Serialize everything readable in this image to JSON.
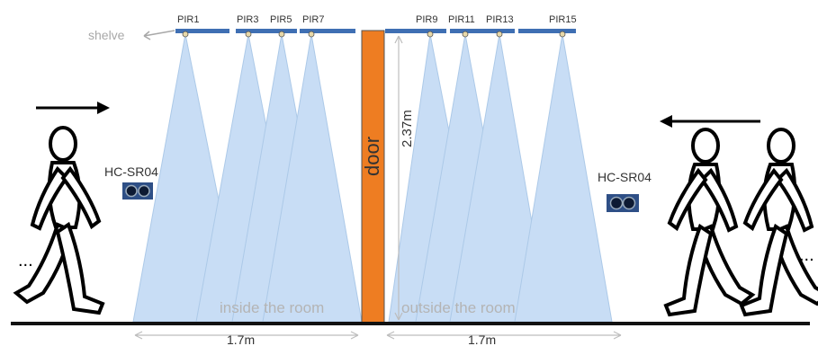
{
  "sensors": {
    "pir": [
      "PIR1",
      "PIR3",
      "PIR5",
      "PIR7",
      "PIR9",
      "PIR11",
      "PIR13",
      "PIR15"
    ],
    "ultrasonic_left": "HC-SR04",
    "ultrasonic_right": "HC-SR04"
  },
  "labels": {
    "shelve": "shelve",
    "door": "door",
    "door_height": "2.37m",
    "inside": "inside the room",
    "outside": "outside the room",
    "width_left": "1.7m",
    "width_right": "1.7m",
    "ellipsis_left": "...",
    "ellipsis_right": "..."
  },
  "colors": {
    "beam_fill": "#9cc3ee",
    "beam_stroke": "#6a9ed6",
    "door": "#ee7d22",
    "sensor_bar": "#3f6fb3",
    "sensor_box": "#2e4f86",
    "floor": "#111111"
  },
  "icons": {
    "walker": "person-walking-icon",
    "arrow_right": "arrow-right-icon",
    "arrow_left": "arrow-left-icon"
  }
}
